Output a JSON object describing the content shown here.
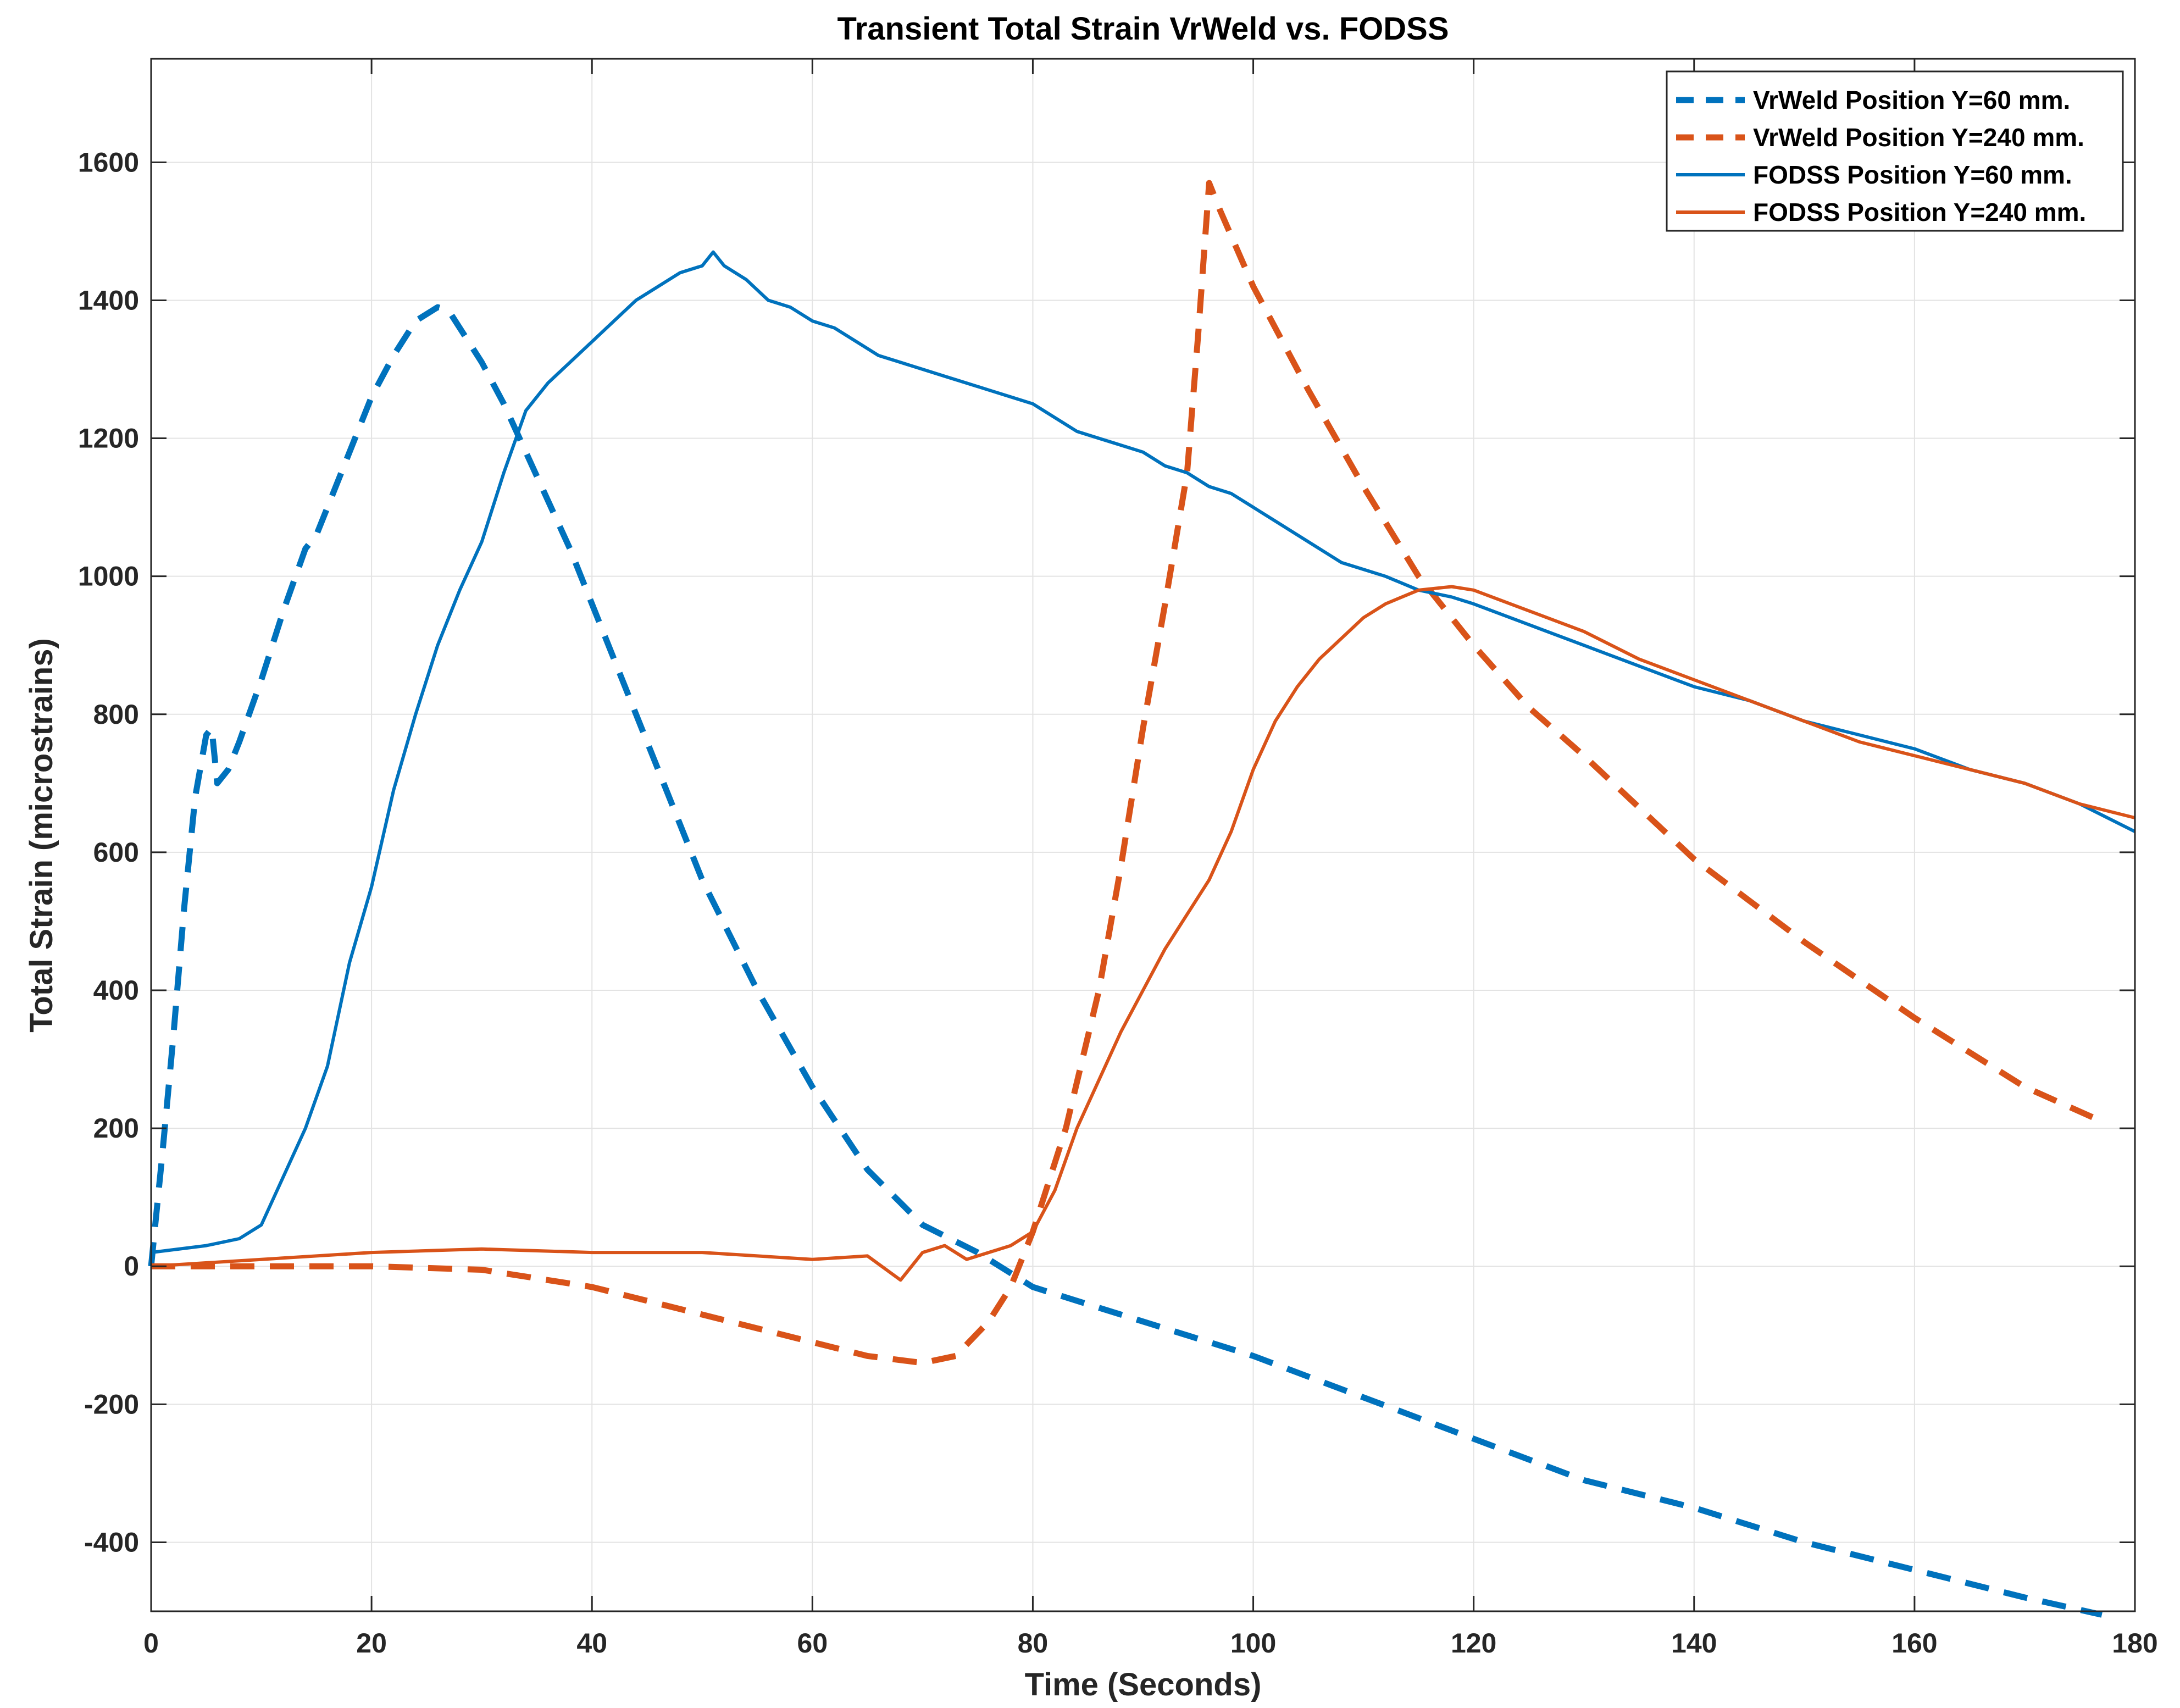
{
  "chart_data": {
    "type": "line",
    "title": "Transient Total Strain VrWeld vs. FODSS",
    "xlabel": "Time (Seconds)",
    "ylabel": "Total Strain (microstrains)",
    "xlim": [
      0,
      180
    ],
    "ylim": [
      -500,
      1750
    ],
    "xticks": [
      0,
      20,
      40,
      60,
      80,
      100,
      120,
      140,
      160,
      180
    ],
    "yticks": [
      -400,
      -200,
      0,
      200,
      400,
      600,
      800,
      1000,
      1200,
      1400,
      1600
    ],
    "xtick_labels": [
      "0",
      "20",
      "40",
      "60",
      "80",
      "100",
      "120",
      "140",
      "160",
      "180"
    ],
    "ytick_labels": [
      "-400",
      "-200",
      "0",
      "200",
      "400",
      "600",
      "800",
      "1000",
      "1200",
      "1400",
      "1600"
    ],
    "grid": true,
    "legend_position": "top-right",
    "series": [
      {
        "name": "VrWeld Position Y=60 mm.",
        "color": "#0072BD",
        "style": "dashed",
        "x": [
          0,
          0.5,
          1,
          2,
          3,
          4,
          5,
          5.5,
          6,
          7,
          8,
          10,
          12,
          14,
          15,
          16,
          18,
          20,
          22,
          24,
          26,
          27,
          28,
          30,
          32,
          34,
          36,
          38,
          40,
          42,
          45,
          48,
          50,
          55,
          60,
          65,
          70,
          75,
          80,
          90,
          100,
          110,
          120,
          130,
          140,
          150,
          160,
          170,
          177
        ],
        "y": [
          0,
          80,
          160,
          330,
          520,
          680,
          770,
          780,
          700,
          720,
          760,
          850,
          950,
          1040,
          1060,
          1100,
          1180,
          1260,
          1320,
          1370,
          1390,
          1385,
          1360,
          1310,
          1250,
          1180,
          1110,
          1040,
          960,
          880,
          760,
          640,
          560,
          400,
          260,
          140,
          60,
          20,
          -30,
          -80,
          -130,
          -190,
          -250,
          -310,
          -350,
          -400,
          -440,
          -480,
          -505
        ]
      },
      {
        "name": "VrWeld Position Y=240 mm.",
        "color": "#D95319",
        "style": "dashed",
        "x": [
          0,
          10,
          20,
          30,
          40,
          50,
          55,
          60,
          65,
          70,
          73,
          76,
          78,
          80,
          83,
          86,
          88,
          90,
          92,
          94,
          95,
          96,
          97,
          100,
          105,
          110,
          115,
          120,
          125,
          130,
          140,
          150,
          160,
          170,
          177
        ],
        "y": [
          0,
          0,
          0,
          -5,
          -30,
          -70,
          -90,
          -110,
          -130,
          -140,
          -130,
          -80,
          -30,
          50,
          200,
          400,
          580,
          780,
          960,
          1150,
          1350,
          1570,
          1530,
          1420,
          1270,
          1130,
          1000,
          900,
          810,
          740,
          590,
          470,
          360,
          260,
          210
        ]
      },
      {
        "name": "FODSS Position Y=60 mm.",
        "color": "#0072BD",
        "style": "solid",
        "x": [
          0,
          5,
          8,
          10,
          12,
          14,
          16,
          18,
          20,
          22,
          24,
          26,
          28,
          30,
          32,
          34,
          36,
          38,
          40,
          42,
          44,
          46,
          48,
          50,
          51,
          52,
          54,
          56,
          58,
          60,
          62,
          64,
          66,
          68,
          70,
          72,
          74,
          76,
          78,
          80,
          82,
          84,
          86,
          88,
          90,
          92,
          94,
          96,
          98,
          100,
          102,
          104,
          106,
          108,
          110,
          112,
          115,
          118,
          120,
          125,
          130,
          135,
          140,
          145,
          150,
          155,
          160,
          165,
          170,
          175,
          180
        ],
        "y": [
          20,
          30,
          40,
          60,
          130,
          200,
          290,
          440,
          550,
          690,
          800,
          900,
          980,
          1050,
          1150,
          1240,
          1280,
          1310,
          1340,
          1370,
          1400,
          1420,
          1440,
          1450,
          1470,
          1450,
          1430,
          1400,
          1390,
          1370,
          1360,
          1340,
          1320,
          1310,
          1300,
          1290,
          1280,
          1270,
          1260,
          1250,
          1230,
          1210,
          1200,
          1190,
          1180,
          1160,
          1150,
          1130,
          1120,
          1100,
          1080,
          1060,
          1040,
          1020,
          1010,
          1000,
          980,
          970,
          960,
          930,
          900,
          870,
          840,
          820,
          790,
          770,
          750,
          720,
          700,
          670,
          630
        ]
      },
      {
        "name": "FODSS Position Y=240 mm.",
        "color": "#D95319",
        "style": "solid",
        "x": [
          0,
          10,
          20,
          30,
          40,
          50,
          55,
          60,
          65,
          68,
          70,
          72,
          74,
          76,
          78,
          80,
          82,
          84,
          86,
          88,
          90,
          92,
          94,
          96,
          98,
          100,
          102,
          104,
          106,
          108,
          110,
          112,
          115,
          118,
          120,
          125,
          130,
          135,
          140,
          145,
          150,
          155,
          160,
          165,
          170,
          175,
          180
        ],
        "y": [
          0,
          10,
          20,
          25,
          20,
          20,
          15,
          10,
          15,
          -20,
          20,
          30,
          10,
          20,
          30,
          50,
          110,
          200,
          270,
          340,
          400,
          460,
          510,
          560,
          630,
          720,
          790,
          840,
          880,
          910,
          940,
          960,
          980,
          985,
          980,
          950,
          920,
          880,
          850,
          820,
          790,
          760,
          740,
          720,
          700,
          670,
          650
        ]
      }
    ]
  }
}
